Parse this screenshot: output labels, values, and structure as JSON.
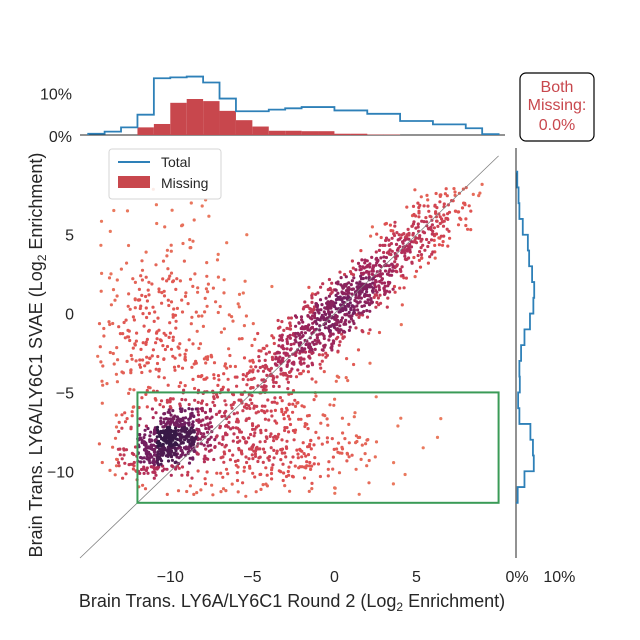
{
  "chart_data": {
    "type": "scatter",
    "subtype": "joint-scatter-with-marginal-histograms",
    "xlabel_prefix": "Brain Trans. LY6A/LY6C1 Round 2 (Log",
    "xlabel_sub": "2",
    "xlabel_suffix": " Enrichment)",
    "ylabel_prefix": "Brain Trans. LY6A/LY6C1 SVAE (Log",
    "ylabel_sub": "2",
    "ylabel_suffix": " Enrichment)",
    "xlim": [
      -15.5,
      11
    ],
    "ylim": [
      -15.5,
      10.5
    ],
    "x_ticks": [
      -10,
      -5,
      0,
      5
    ],
    "x_tick_labels": [
      "−10",
      "−5",
      "0",
      "5"
    ],
    "y_ticks": [
      5,
      0,
      -5,
      -10
    ],
    "y_tick_labels": [
      "5",
      "0",
      "−5",
      "−10"
    ],
    "diagonal": {
      "from": [
        -15.5,
        -15.5
      ],
      "to": [
        10,
        10
      ],
      "color": "#808080"
    },
    "highlight_box": {
      "x0": -12,
      "x1": 10,
      "y0": -12,
      "y1": -5,
      "color": "#3a9b57"
    },
    "top_hist": {
      "y_ticks": [
        0,
        10
      ],
      "y_tick_labels": [
        "0%",
        "10%"
      ],
      "ymax_percent": 17,
      "bin_edges": [
        -15,
        -14,
        -13,
        -12,
        -11,
        -10,
        -9,
        -8,
        -7,
        -6,
        -5,
        -4,
        -3,
        -2,
        -1,
        0,
        1,
        2,
        3,
        4,
        5,
        6,
        7,
        8,
        9,
        10
      ],
      "total_percent": [
        0.3,
        0.8,
        1.8,
        4.8,
        13.4,
        13.6,
        13.8,
        12.4,
        8.6,
        5.6,
        5.6,
        6.0,
        6.3,
        6.6,
        6.6,
        5.8,
        5.8,
        5.0,
        5.0,
        3.3,
        3.3,
        2.5,
        2.5,
        1.6,
        0.2
      ],
      "missing_percent": [
        0,
        0,
        0,
        1.8,
        2.6,
        7.6,
        8.5,
        8.0,
        5.7,
        3.5,
        2.0,
        1.0,
        1.0,
        0.9,
        0.9,
        0.3,
        0.3,
        0.1,
        0.1,
        0,
        0,
        0,
        0,
        0,
        0
      ]
    },
    "right_hist": {
      "x_ticks": [
        0,
        10
      ],
      "x_tick_labels": [
        "0%",
        "10%"
      ],
      "xmax_percent": 17,
      "bin_edges": [
        -12,
        -11,
        -10,
        -9,
        -8,
        -7,
        -6,
        -5,
        -4,
        -3,
        -2,
        -1,
        0,
        1,
        2,
        3,
        4,
        5,
        6,
        7,
        8,
        9
      ],
      "total_percent": [
        0.4,
        2.0,
        4.2,
        4.0,
        3.4,
        0.8,
        0.5,
        0.9,
        0.8,
        1.2,
        2.0,
        3.3,
        4.1,
        4.3,
        3.8,
        3.1,
        2.8,
        1.6,
        0.8,
        0.6,
        0.3
      ]
    },
    "legend": {
      "position": "top-left",
      "entries": [
        {
          "label": "Total",
          "style": "line",
          "color": "#2e80b8"
        },
        {
          "label": "Missing",
          "style": "patch",
          "color": "#c8474d"
        }
      ]
    },
    "annotation": {
      "lines": [
        "Both",
        "Missing:",
        "0.0%"
      ],
      "color": "#c8474d",
      "position": "top-right"
    },
    "colormap": "rocket (density): dark purple high, orange low",
    "clusters": [
      {
        "name": "lower-left dense",
        "cx": -10,
        "cy": -8,
        "sx": 1.3,
        "sy": 1.1,
        "rho": 0.5,
        "n": 520
      },
      {
        "name": "lower-middle spread",
        "cx": -4.5,
        "cy": -8.3,
        "sx": 3.8,
        "sy": 1.6,
        "rho": 0,
        "n": 460
      },
      {
        "name": "upper-left diffuse",
        "cx": -10.5,
        "cy": -1.5,
        "sx": 2.6,
        "sy": 3.6,
        "rho": 0,
        "n": 400
      },
      {
        "name": "diagonal dense",
        "cx": 0,
        "cy": 0,
        "sx": 2.6,
        "sy": 2.4,
        "rho": 0.88,
        "n": 700
      },
      {
        "name": "upper-right tail",
        "cx": 5.2,
        "cy": 5,
        "sx": 2.2,
        "sy": 2.1,
        "rho": 0.85,
        "n": 280
      },
      {
        "name": "diagonal lower arm",
        "cx": -3.5,
        "cy": -3.5,
        "sx": 2.4,
        "sy": 1.8,
        "rho": 0.6,
        "n": 160
      }
    ]
  }
}
